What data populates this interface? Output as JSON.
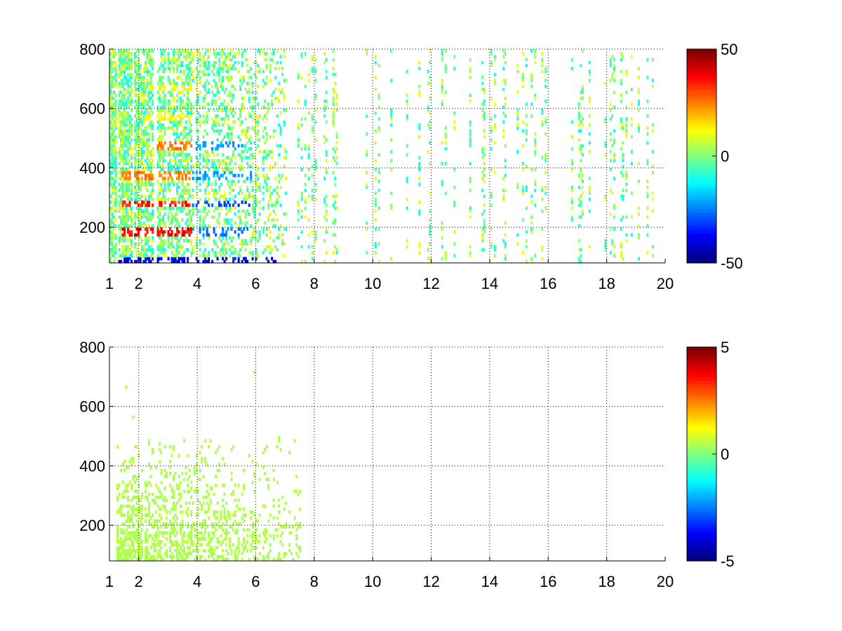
{
  "chart_data": [
    {
      "type": "heatmap",
      "title": "",
      "xlabel": "",
      "ylabel": "",
      "xlim": [
        1,
        20
      ],
      "ylim": [
        80,
        800
      ],
      "xticks": [
        1,
        2,
        4,
        6,
        8,
        10,
        12,
        14,
        16,
        18,
        20
      ],
      "yticks": [
        200,
        400,
        600,
        800
      ],
      "grid": true,
      "colormap": "jet",
      "clim": [
        -50,
        50
      ],
      "colorbar_ticks": [
        50,
        0,
        -50
      ],
      "dense_region": {
        "x_range": [
          1,
          7
        ],
        "y_range": [
          80,
          800
        ]
      },
      "bands": [
        {
          "x_range": [
            1.4,
            3.8
          ],
          "y": 180,
          "value": 45
        },
        {
          "x_range": [
            1.4,
            3.8
          ],
          "y": 275,
          "value": 40
        },
        {
          "x_range": [
            1.4,
            3.8
          ],
          "y": 370,
          "value": 30
        },
        {
          "x_range": [
            2.5,
            3.8
          ],
          "y": 470,
          "value": 30
        },
        {
          "x_range": [
            2.2,
            3.8
          ],
          "y": 565,
          "value": 15
        },
        {
          "x_range": [
            2.3,
            3.8
          ],
          "y": 665,
          "value": 12
        },
        {
          "x_range": [
            3.8,
            5.8
          ],
          "y": 180,
          "value": -30
        },
        {
          "x_range": [
            3.8,
            5.8
          ],
          "y": 275,
          "value": -35
        },
        {
          "x_range": [
            3.8,
            5.8
          ],
          "y": 370,
          "value": -25
        },
        {
          "x_range": [
            3.8,
            5.5
          ],
          "y": 470,
          "value": -25
        },
        {
          "x_range": [
            1.2,
            7.0
          ],
          "y": 85,
          "value": -45
        }
      ]
    },
    {
      "type": "heatmap",
      "title": "",
      "xlabel": "",
      "ylabel": "",
      "xlim": [
        1,
        20
      ],
      "ylim": [
        80,
        800
      ],
      "xticks": [
        1,
        2,
        4,
        6,
        8,
        10,
        12,
        14,
        16,
        18,
        20
      ],
      "yticks": [
        200,
        400,
        600,
        800
      ],
      "grid": true,
      "colormap": "jet",
      "clim": [
        -5,
        5
      ],
      "colorbar_ticks": [
        5,
        0,
        -5
      ],
      "dense_region": {
        "x_range": [
          1.2,
          7.5
        ],
        "y_range": [
          80,
          480
        ]
      },
      "bands": [
        {
          "x_range": [
            1.7,
            5.7
          ],
          "y": 180,
          "value": 0.5
        },
        {
          "x_range": [
            1.7,
            5.7
          ],
          "y": 275,
          "value": 0.5
        },
        {
          "x_range": [
            1.7,
            5.7
          ],
          "y": 370,
          "value": 0.5
        },
        {
          "x_range": [
            2.1,
            3.9
          ],
          "y": 470,
          "value": 0.5
        },
        {
          "x_range": [
            1.2,
            7.5
          ],
          "y": 85,
          "value": 0.5
        }
      ]
    }
  ]
}
